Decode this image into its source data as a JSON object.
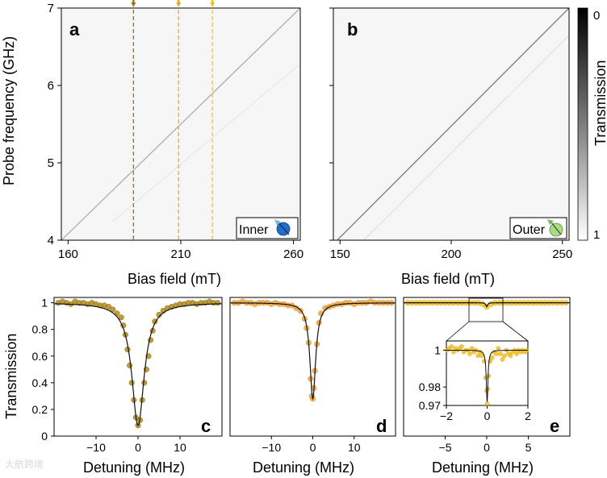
{
  "chart_data": [
    {
      "id": "a",
      "type": "heatmap",
      "panel_label": "a",
      "xlabel": "Bias field (mT)",
      "ylabel": "Probe frequency  (GHz)",
      "xlim": [
        157,
        263
      ],
      "ylim": [
        4,
        7
      ],
      "xticks": [
        160,
        210,
        260
      ],
      "yticks": [
        4,
        5,
        6,
        7
      ],
      "inset_label": "Inner",
      "inset_icon_color": "#1f6fd1",
      "lines": [
        {
          "name": "main",
          "points": [
            [
              157,
              4.0
            ],
            [
              263,
              7.0
            ]
          ],
          "opacity": 0.3
        },
        {
          "name": "faint",
          "points": [
            [
              180,
              4.25
            ],
            [
              263,
              6.28
            ]
          ],
          "opacity": 0.06
        }
      ],
      "cuts": [
        {
          "x": 189,
          "color": "#a07214"
        },
        {
          "x": 209,
          "color": "#e8a92a"
        },
        {
          "x": 224,
          "color": "#f4c21a"
        }
      ]
    },
    {
      "id": "b",
      "type": "heatmap",
      "panel_label": "b",
      "xlabel": "Bias field (mT)",
      "ylabel": "",
      "xlim": [
        147,
        253
      ],
      "ylim": [
        4,
        7
      ],
      "xticks": [
        150,
        200,
        250
      ],
      "yticks": [
        4,
        5,
        6,
        7
      ],
      "inset_label": "Outer",
      "inset_icon_color": "#a7dc82",
      "lines": [
        {
          "name": "main",
          "points": [
            [
              147,
              3.95
            ],
            [
              253,
              7.0
            ]
          ],
          "opacity": 0.5
        },
        {
          "name": "faint",
          "points": [
            [
              160,
              3.98
            ],
            [
              253,
              6.65
            ]
          ],
          "opacity": 0.08
        }
      ],
      "colorbar": {
        "label": "Transmission",
        "range": [
          0,
          1
        ],
        "ticks": [
          0,
          1
        ]
      }
    },
    {
      "id": "c",
      "type": "scatter",
      "panel_label": "c",
      "xlabel": "Detuning (MHz)",
      "ylabel": "Transmission",
      "xlim": [
        -20,
        20
      ],
      "ylim": [
        0,
        1.04
      ],
      "xticks": [
        -10,
        0,
        10
      ],
      "yticks": [
        0,
        0.2,
        0.4,
        0.6,
        0.8,
        1
      ],
      "marker_color": "#b38918",
      "fit": {
        "model": "lorentzian",
        "center": 0,
        "depth": 0.92,
        "hwhm": 1.8
      },
      "points": [
        [
          -19,
          1.0
        ],
        [
          -18,
          1.01
        ],
        [
          -17,
          1.0
        ],
        [
          -16,
          0.99
        ],
        [
          -15,
          1.01
        ],
        [
          -14,
          1.0
        ],
        [
          -13,
          1.0
        ],
        [
          -12,
          0.99
        ],
        [
          -11,
          1.0
        ],
        [
          -10,
          0.99
        ],
        [
          -9,
          0.98
        ],
        [
          -8,
          0.98
        ],
        [
          -7,
          0.97
        ],
        [
          -6,
          0.95
        ],
        [
          -5,
          0.92
        ],
        [
          -4,
          0.89
        ],
        [
          -3.5,
          0.83
        ],
        [
          -3,
          0.76
        ],
        [
          -2.5,
          0.65
        ],
        [
          -2,
          0.53
        ],
        [
          -1.5,
          0.4
        ],
        [
          -1,
          0.27
        ],
        [
          -0.5,
          0.14
        ],
        [
          0,
          0.08
        ],
        [
          0.5,
          0.12
        ],
        [
          1,
          0.27
        ],
        [
          1.5,
          0.4
        ],
        [
          2,
          0.5
        ],
        [
          2.5,
          0.6
        ],
        [
          3,
          0.72
        ],
        [
          3.5,
          0.79
        ],
        [
          4,
          0.86
        ],
        [
          5,
          0.91
        ],
        [
          6,
          0.94
        ],
        [
          7,
          0.96
        ],
        [
          8,
          0.97
        ],
        [
          9,
          0.98
        ],
        [
          10,
          0.99
        ],
        [
          11,
          0.99
        ],
        [
          12,
          1.0
        ],
        [
          13,
          1.0
        ],
        [
          14,
          0.99
        ],
        [
          15,
          1.0
        ],
        [
          16,
          1.0
        ],
        [
          17,
          1.01
        ],
        [
          18,
          1.0
        ],
        [
          19,
          1.0
        ]
      ]
    },
    {
      "id": "d",
      "type": "scatter",
      "panel_label": "d",
      "xlabel": "Detuning (MHz)",
      "ylabel": "",
      "xlim": [
        -20,
        20
      ],
      "ylim": [
        0,
        1.04
      ],
      "xticks": [
        -10,
        0,
        10
      ],
      "yticks": [
        0,
        0.2,
        0.4,
        0.6,
        0.8,
        1
      ],
      "marker_color": "#f0a538",
      "fit": {
        "model": "lorentzian",
        "center": 0,
        "depth": 0.72,
        "hwhm": 0.85
      },
      "points": [
        [
          -19,
          1.0
        ],
        [
          -18,
          1.0
        ],
        [
          -17,
          1.01
        ],
        [
          -16,
          1.0
        ],
        [
          -15,
          1.0
        ],
        [
          -14,
          0.99
        ],
        [
          -13,
          1.0
        ],
        [
          -12,
          1.0
        ],
        [
          -11,
          1.0
        ],
        [
          -10,
          0.99
        ],
        [
          -9,
          1.0
        ],
        [
          -8,
          0.99
        ],
        [
          -7,
          0.99
        ],
        [
          -6,
          0.98
        ],
        [
          -5,
          0.98
        ],
        [
          -4,
          0.96
        ],
        [
          -3,
          0.94
        ],
        [
          -2,
          0.88
        ],
        [
          -1.5,
          0.81
        ],
        [
          -1,
          0.7
        ],
        [
          -0.5,
          0.43
        ],
        [
          -0.25,
          0.3
        ],
        [
          0,
          0.28
        ],
        [
          0.25,
          0.36
        ],
        [
          0.5,
          0.49
        ],
        [
          1,
          0.69
        ],
        [
          1.5,
          0.85
        ],
        [
          2,
          0.92
        ],
        [
          3,
          0.96
        ],
        [
          4,
          0.97
        ],
        [
          5,
          0.98
        ],
        [
          6,
          0.99
        ],
        [
          7,
          0.99
        ],
        [
          8,
          1.0
        ],
        [
          9,
          1.0
        ],
        [
          10,
          0.99
        ],
        [
          11,
          1.0
        ],
        [
          12,
          1.0
        ],
        [
          13,
          1.0
        ],
        [
          14,
          1.01
        ],
        [
          15,
          1.0
        ],
        [
          16,
          1.0
        ],
        [
          17,
          1.0
        ],
        [
          18,
          1.0
        ],
        [
          19,
          1.0
        ]
      ]
    },
    {
      "id": "e",
      "type": "scatter",
      "panel_label": "e",
      "xlabel": "Detuning (MHz)",
      "ylabel": "",
      "xlim": [
        -10,
        10
      ],
      "ylim": [
        0,
        1.04
      ],
      "xticks": [
        -5,
        0,
        5
      ],
      "yticks": [
        0,
        0.2,
        0.4,
        0.6,
        0.8,
        1
      ],
      "marker_color": "#f3c12a",
      "fit": {
        "model": "lorentzian",
        "center": 0,
        "depth": 0.03,
        "hwhm": 0.12
      },
      "points": [
        [
          -9.5,
          1.0
        ],
        [
          -9,
          1.0
        ],
        [
          -8.5,
          1.0
        ],
        [
          -8,
          1.0
        ],
        [
          -7.5,
          1.0
        ],
        [
          -7,
          1.0
        ],
        [
          -6.5,
          1.0
        ],
        [
          -6,
          1.0
        ],
        [
          -5.5,
          1.0
        ],
        [
          -5,
          1.0
        ],
        [
          -4.5,
          1.0
        ],
        [
          -4,
          1.0
        ],
        [
          -3.5,
          1.0
        ],
        [
          -3,
          1.0
        ],
        [
          -2.5,
          1.0
        ],
        [
          -2,
          1.0
        ],
        [
          -1.5,
          1.0
        ],
        [
          -1,
          1.0
        ],
        [
          -0.5,
          0.99
        ],
        [
          0,
          0.97
        ],
        [
          0.5,
          0.99
        ],
        [
          1,
          1.0
        ],
        [
          1.5,
          1.0
        ],
        [
          2,
          1.0
        ],
        [
          2.5,
          1.0
        ],
        [
          3,
          1.0
        ],
        [
          3.5,
          1.0
        ],
        [
          4,
          1.0
        ],
        [
          4.5,
          1.0
        ],
        [
          5,
          1.0
        ],
        [
          5.5,
          1.0
        ],
        [
          6,
          1.0
        ],
        [
          6.5,
          1.0
        ],
        [
          7,
          1.0
        ],
        [
          7.5,
          1.0
        ],
        [
          8,
          1.0
        ],
        [
          8.5,
          1.0
        ],
        [
          9,
          1.0
        ],
        [
          9.5,
          1.0
        ]
      ],
      "inset": {
        "zoom_from": {
          "x": [
            -2,
            2
          ],
          "y": [
            0.97,
            1.005
          ]
        },
        "xlim": [
          -2,
          2
        ],
        "ylim": [
          0.97,
          1.005
        ],
        "xticks": [
          -2,
          0,
          2
        ],
        "yticks": [
          0.97,
          0.98,
          1
        ],
        "ytick_labels": [
          "0.97",
          "0.98",
          "1"
        ],
        "points": [
          [
            -1.95,
            1.0
          ],
          [
            -1.85,
            1.001
          ],
          [
            -1.75,
            1.002
          ],
          [
            -1.65,
            0.999
          ],
          [
            -1.55,
            1.001
          ],
          [
            -1.45,
            1.0
          ],
          [
            -1.35,
            1.001
          ],
          [
            -1.25,
            1.002
          ],
          [
            -1.15,
            0.999
          ],
          [
            -1.05,
            1.0
          ],
          [
            -0.95,
            1.0
          ],
          [
            -0.85,
            0.998
          ],
          [
            -0.75,
            1.001
          ],
          [
            -0.65,
            0.999
          ],
          [
            -0.55,
            1.0
          ],
          [
            -0.45,
            0.997
          ],
          [
            -0.35,
            0.999
          ],
          [
            -0.25,
            0.997
          ],
          [
            -0.15,
            0.994
          ],
          [
            -0.08,
            0.985
          ],
          [
            -0.03,
            0.978
          ],
          [
            0,
            0.971
          ],
          [
            0.03,
            0.979
          ],
          [
            0.08,
            0.986
          ],
          [
            0.15,
            0.994
          ],
          [
            0.25,
            0.996
          ],
          [
            0.35,
            0.999
          ],
          [
            0.45,
            0.998
          ],
          [
            0.55,
            1.001
          ],
          [
            0.65,
            0.998
          ],
          [
            0.75,
            0.995
          ],
          [
            0.85,
            0.997
          ],
          [
            0.95,
            1.0
          ],
          [
            1.05,
            0.998
          ],
          [
            1.15,
            0.997
          ],
          [
            1.25,
            0.999
          ],
          [
            1.35,
            1.0
          ],
          [
            1.45,
            0.998
          ],
          [
            1.55,
            1.0
          ],
          [
            1.65,
            0.999
          ],
          [
            1.75,
            1.0
          ],
          [
            1.85,
            0.999
          ],
          [
            1.95,
            1.0
          ]
        ]
      }
    }
  ],
  "watermark": "大航跨境"
}
